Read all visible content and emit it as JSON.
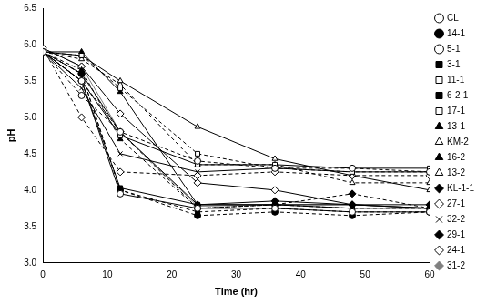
{
  "chart_data": {
    "type": "line",
    "x_label": "Time (hr)",
    "y_label": "pH",
    "x": [
      0,
      6,
      12,
      24,
      36,
      48,
      60
    ],
    "xlim": [
      0,
      60
    ],
    "xticks": [
      0,
      10,
      20,
      30,
      40,
      50,
      60
    ],
    "ylim": [
      3,
      6.5
    ],
    "yticks": [
      {
        "value": 3,
        "label": "3.0"
      },
      3.5,
      {
        "value": 4,
        "label": "4.0"
      },
      4.5,
      {
        "value": 5,
        "label": "5.0"
      },
      5.5,
      {
        "value": 6,
        "label": "6.0"
      },
      6.5
    ],
    "grid": false,
    "legend": "right",
    "series": [
      {
        "name": "CL",
        "color": "#000000",
        "marker": "circle-open",
        "line_style": "solid",
        "values": [
          5.9,
          5.5,
          3.95,
          3.75,
          3.75,
          3.7,
          3.7
        ]
      },
      {
        "name": "14-1",
        "color": "#000000",
        "marker": "circle",
        "line_style": "dashed",
        "values": [
          5.9,
          5.6,
          4.0,
          3.65,
          3.7,
          3.65,
          3.7
        ]
      },
      {
        "name": "5-1",
        "color": "#000000",
        "marker": "circle-open",
        "line_style": "dashed",
        "values": [
          5.9,
          5.3,
          4.8,
          4.4,
          4.3,
          4.3,
          4.25
        ]
      },
      {
        "name": "3-1",
        "color": "#000000",
        "marker": "square",
        "line_style": "solid",
        "values": [
          5.9,
          5.5,
          4.03,
          3.8,
          3.8,
          3.75,
          3.75
        ]
      },
      {
        "name": "11-1",
        "color": "#000000",
        "marker": "square-open",
        "line_style": "solid",
        "values": [
          5.9,
          5.5,
          4.75,
          4.35,
          4.35,
          4.3,
          4.3
        ]
      },
      {
        "name": "6-2-1",
        "color": "#000000",
        "marker": "square",
        "line_style": "dashed",
        "values": [
          5.9,
          5.6,
          4.0,
          3.7,
          3.75,
          3.7,
          3.7
        ]
      },
      {
        "name": "17-1",
        "color": "#000000",
        "marker": "square-open",
        "line_style": "dashed",
        "values": [
          5.9,
          5.85,
          5.4,
          4.5,
          4.3,
          4.25,
          4.25
        ]
      },
      {
        "name": "13-1",
        "color": "#000000",
        "marker": "triangle",
        "line_style": "solid",
        "values": [
          5.9,
          5.9,
          5.35,
          3.8,
          3.8,
          3.8,
          3.75
        ]
      },
      {
        "name": "KM-2",
        "color": "#000000",
        "marker": "triangle-open",
        "line_style": "solid",
        "values": [
          5.9,
          5.85,
          5.5,
          4.87,
          4.43,
          4.2,
          4.0
        ]
      },
      {
        "name": "16-2",
        "color": "#000000",
        "marker": "triangle",
        "line_style": "dashed",
        "values": [
          5.9,
          5.65,
          4.7,
          3.75,
          3.8,
          3.75,
          3.75
        ]
      },
      {
        "name": "13-2",
        "color": "#000000",
        "marker": "triangle-open",
        "line_style": "dashed",
        "values": [
          5.9,
          5.8,
          5.45,
          4.35,
          4.35,
          4.1,
          4.1
        ]
      },
      {
        "name": "KL-1-1",
        "color": "#000000",
        "marker": "diamond",
        "line_style": "solid",
        "values": [
          5.9,
          5.6,
          4.8,
          3.8,
          3.85,
          3.8,
          3.8
        ]
      },
      {
        "name": "27-1",
        "color": "#000000",
        "marker": "diamond-open",
        "line_style": "solid",
        "values": [
          5.95,
          5.7,
          5.05,
          4.1,
          4.0,
          3.8,
          3.75
        ]
      },
      {
        "name": "32-2",
        "color": "#000000",
        "marker": "x",
        "line_style": "solid",
        "values": [
          5.9,
          5.4,
          4.5,
          4.25,
          4.3,
          4.25,
          4.25
        ]
      },
      {
        "name": "29-1",
        "color": "#000000",
        "marker": "diamond",
        "line_style": "dashed",
        "values": [
          5.9,
          5.5,
          4.8,
          3.75,
          3.8,
          3.95,
          3.75
        ]
      },
      {
        "name": "24-1",
        "color": "#000000",
        "marker": "diamond-open",
        "line_style": "dashed",
        "values": [
          5.95,
          5.0,
          4.25,
          4.2,
          4.25,
          4.2,
          4.2
        ]
      },
      {
        "name": "31-2",
        "color": "#808080",
        "marker": "diamond",
        "line_style": "solid",
        "values": [
          5.95,
          5.7,
          4.8,
          3.78,
          3.8,
          3.8,
          3.75
        ]
      }
    ]
  }
}
